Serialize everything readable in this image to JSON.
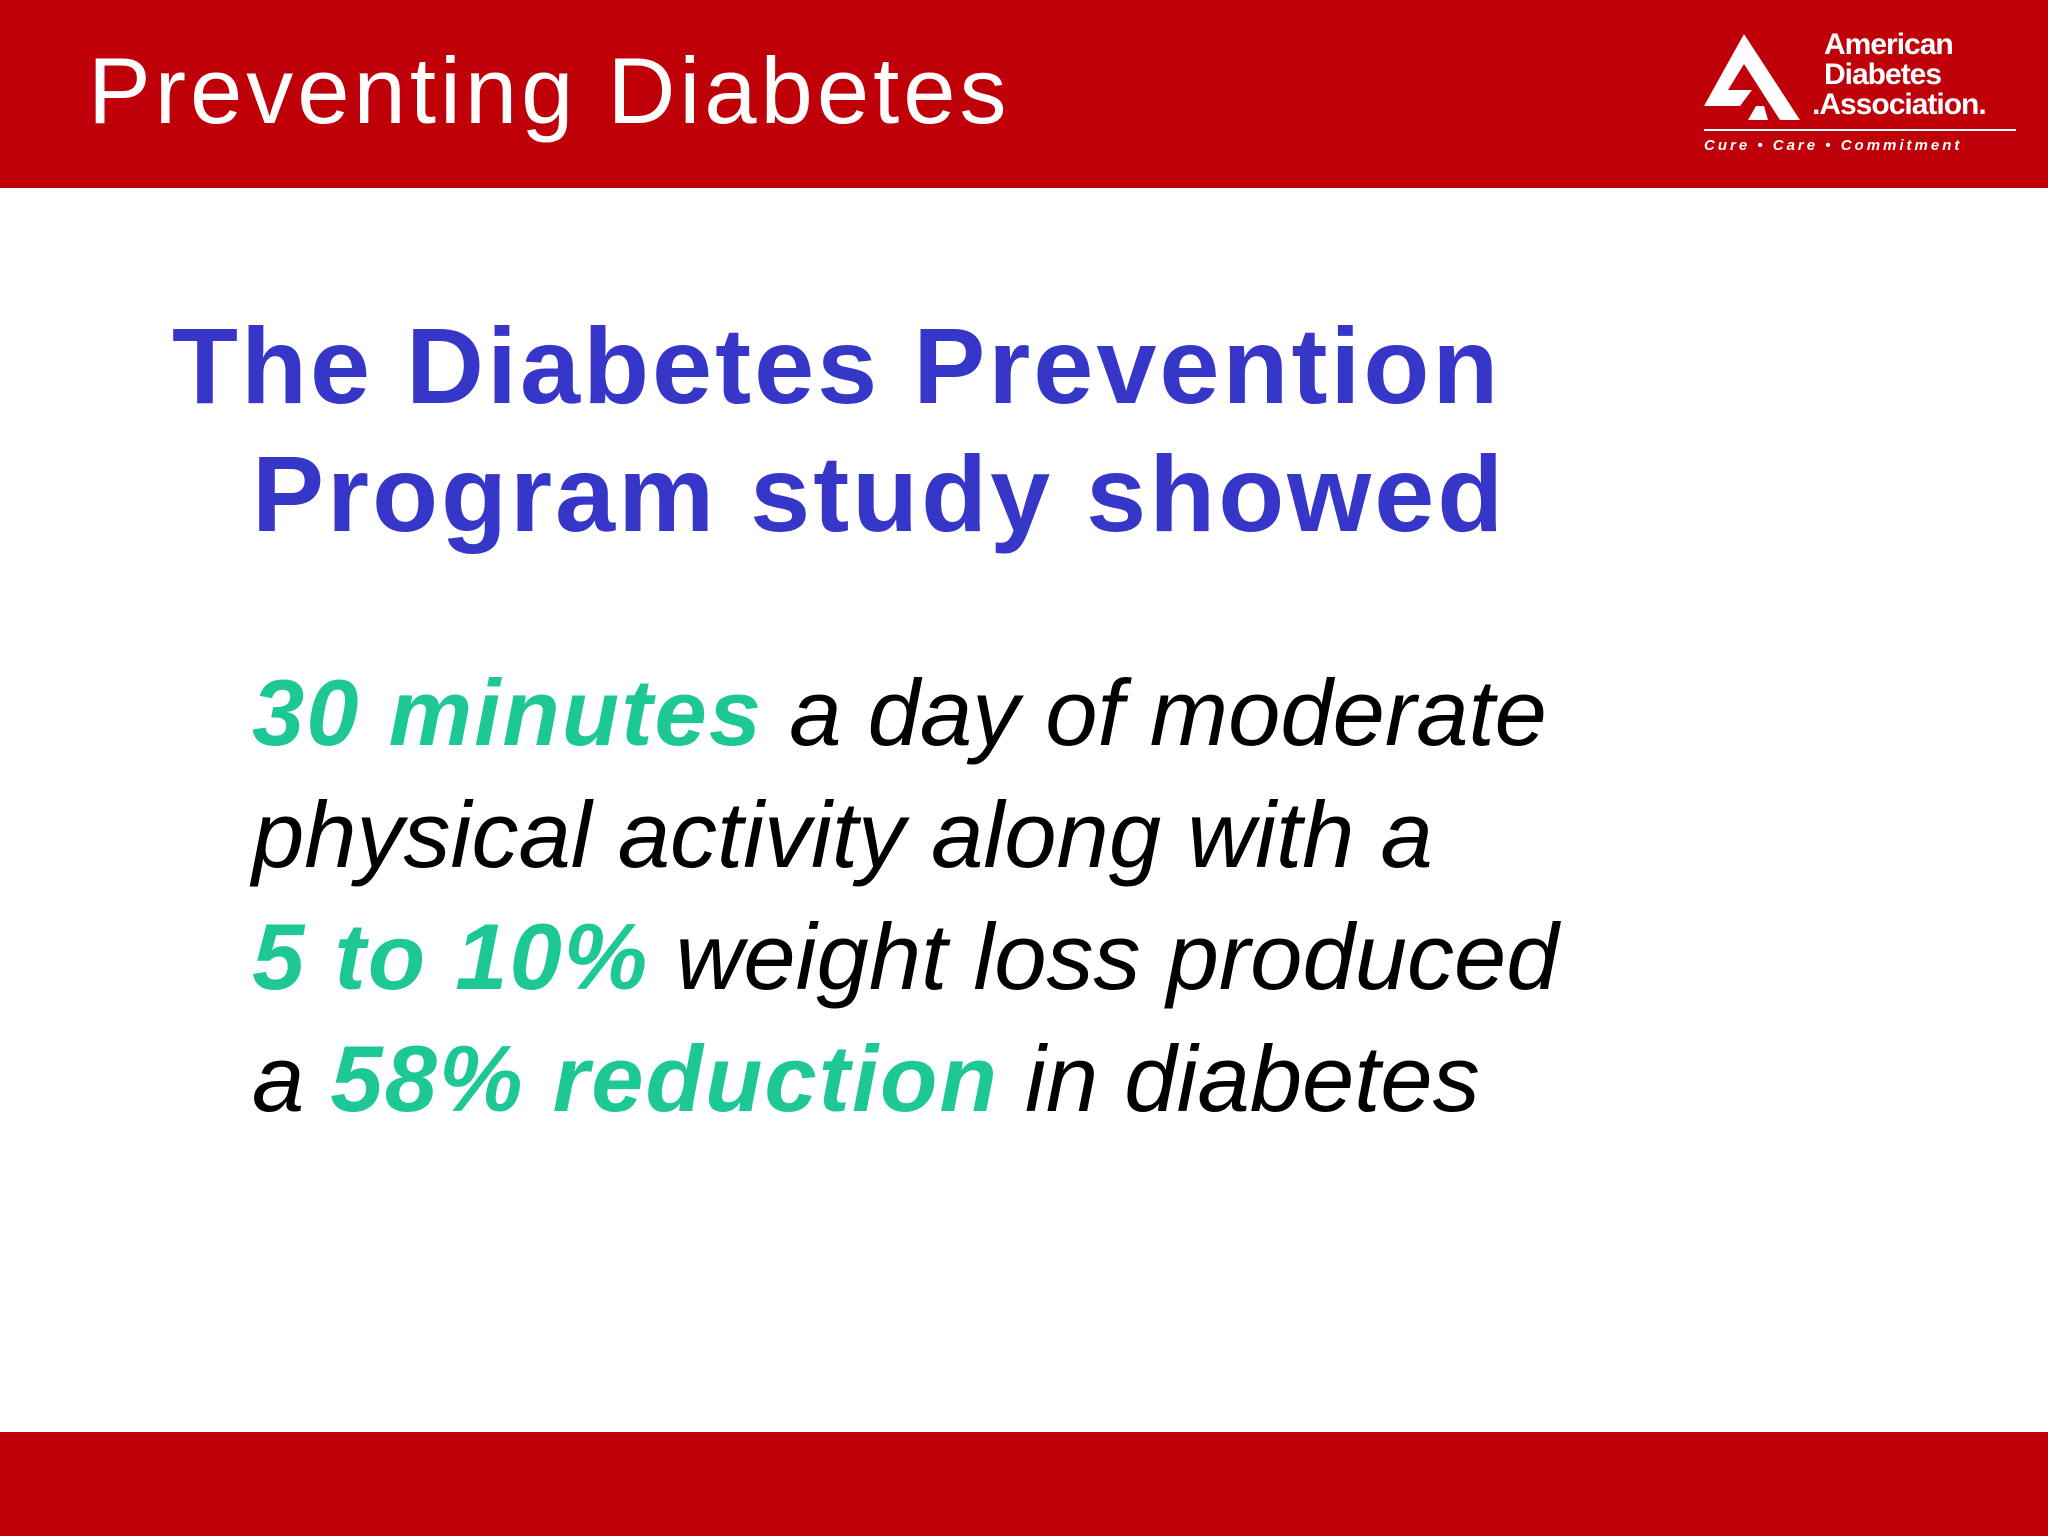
{
  "header": {
    "title": "Preventing Diabetes",
    "bar_color": "#bf0009"
  },
  "logo": {
    "line1": "American",
    "line2": "Diabetes",
    "line3": ".Association.",
    "tagline": "Cure • Care • Commitment"
  },
  "heading": {
    "line1": "The Diabetes Prevention",
    "line2": "Program study showed",
    "color": "#3636c8"
  },
  "body": {
    "highlight_color": "#1ec896",
    "line1_highlight": "30 minutes",
    "line1_text": " a day of moderate",
    "line2_text": "physical activity along with a",
    "line3_highlight": "5 to 10%",
    "line3_text": " weight loss produced",
    "line4_text_a": "a ",
    "line4_highlight": "58% reduction",
    "line4_text_b": " in diabetes"
  },
  "footer": {
    "bar_color": "#bf0009"
  }
}
